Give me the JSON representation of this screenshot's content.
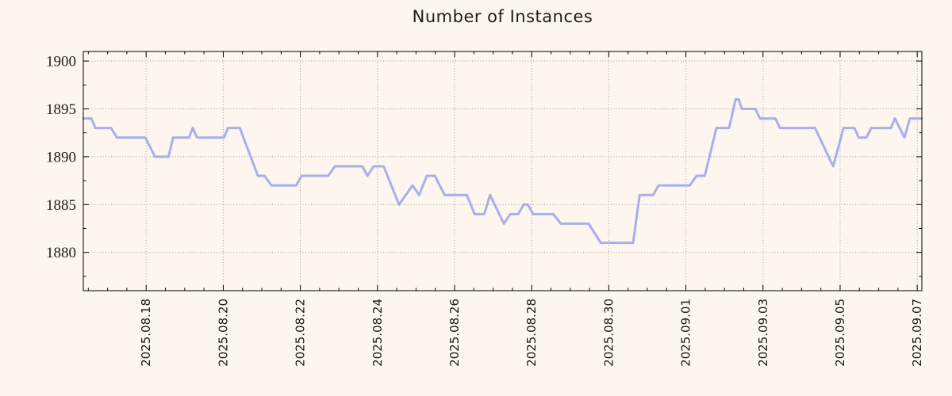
{
  "window": {
    "background": "#fdf6ee"
  },
  "chart_data": {
    "type": "line",
    "title": "Number of Instances",
    "xlabel": "",
    "ylabel": "",
    "grid": true,
    "legend": "none",
    "x_unit": "days since 2025-08-16 00:00",
    "x_range": [
      0.37,
      22.12
    ],
    "y_range": [
      1876,
      1901
    ],
    "y_ticks": [
      1880,
      1885,
      1890,
      1895,
      1900
    ],
    "y_minor_step": 2.5,
    "x_minor_step": 0.5,
    "x_ticks": [
      {
        "d": 2,
        "label": "2025.08.18"
      },
      {
        "d": 4,
        "label": "2025.08.20"
      },
      {
        "d": 6,
        "label": "2025.08.22"
      },
      {
        "d": 8,
        "label": "2025.08.24"
      },
      {
        "d": 10,
        "label": "2025.08.26"
      },
      {
        "d": 12,
        "label": "2025.08.28"
      },
      {
        "d": 14,
        "label": "2025.08.30"
      },
      {
        "d": 16,
        "label": "2025.09.01"
      },
      {
        "d": 18,
        "label": "2025.09.03"
      },
      {
        "d": 20,
        "label": "2025.09.05"
      },
      {
        "d": 22,
        "label": "2025.09.07"
      }
    ],
    "series": [
      {
        "name": "instances",
        "points": [
          [
            0.37,
            1894
          ],
          [
            0.58,
            1894
          ],
          [
            0.68,
            1893
          ],
          [
            1.09,
            1893
          ],
          [
            1.24,
            1892
          ],
          [
            1.98,
            1892
          ],
          [
            2.23,
            1890
          ],
          [
            2.58,
            1890
          ],
          [
            2.7,
            1892
          ],
          [
            3.11,
            1892
          ],
          [
            3.21,
            1893
          ],
          [
            3.32,
            1892
          ],
          [
            4.02,
            1892
          ],
          [
            4.12,
            1893
          ],
          [
            4.43,
            1893
          ],
          [
            4.9,
            1888
          ],
          [
            5.07,
            1888
          ],
          [
            5.25,
            1887
          ],
          [
            5.89,
            1887
          ],
          [
            6.03,
            1888
          ],
          [
            6.72,
            1888
          ],
          [
            6.9,
            1889
          ],
          [
            7.61,
            1889
          ],
          [
            7.74,
            1888
          ],
          [
            7.9,
            1889
          ],
          [
            8.16,
            1889
          ],
          [
            8.56,
            1885
          ],
          [
            8.91,
            1887
          ],
          [
            9.08,
            1886
          ],
          [
            9.28,
            1888
          ],
          [
            9.49,
            1888
          ],
          [
            9.74,
            1886
          ],
          [
            10.32,
            1886
          ],
          [
            10.52,
            1884
          ],
          [
            10.77,
            1884
          ],
          [
            10.92,
            1886
          ],
          [
            11.28,
            1883
          ],
          [
            11.44,
            1884
          ],
          [
            11.65,
            1884
          ],
          [
            11.79,
            1885
          ],
          [
            11.9,
            1885
          ],
          [
            12.04,
            1884
          ],
          [
            12.56,
            1884
          ],
          [
            12.76,
            1883
          ],
          [
            13.48,
            1883
          ],
          [
            13.79,
            1881
          ],
          [
            14.63,
            1881
          ],
          [
            14.8,
            1886
          ],
          [
            15.15,
            1886
          ],
          [
            15.29,
            1887
          ],
          [
            16.1,
            1887
          ],
          [
            16.28,
            1888
          ],
          [
            16.49,
            1888
          ],
          [
            16.79,
            1893
          ],
          [
            17.12,
            1893
          ],
          [
            17.29,
            1896
          ],
          [
            17.37,
            1896
          ],
          [
            17.45,
            1895
          ],
          [
            17.8,
            1895
          ],
          [
            17.92,
            1894
          ],
          [
            18.32,
            1894
          ],
          [
            18.44,
            1893
          ],
          [
            19.35,
            1893
          ],
          [
            19.82,
            1889
          ],
          [
            20.09,
            1893
          ],
          [
            20.37,
            1893
          ],
          [
            20.48,
            1892
          ],
          [
            20.68,
            1892
          ],
          [
            20.81,
            1893
          ],
          [
            21.32,
            1893
          ],
          [
            21.42,
            1894
          ],
          [
            21.67,
            1892
          ],
          [
            21.81,
            1894
          ],
          [
            22.12,
            1894
          ]
        ]
      }
    ],
    "colors": {
      "line": "#a8aeee",
      "grid": "#9a9a9a",
      "axis": "#000000",
      "text": "#1c1c1c"
    }
  }
}
